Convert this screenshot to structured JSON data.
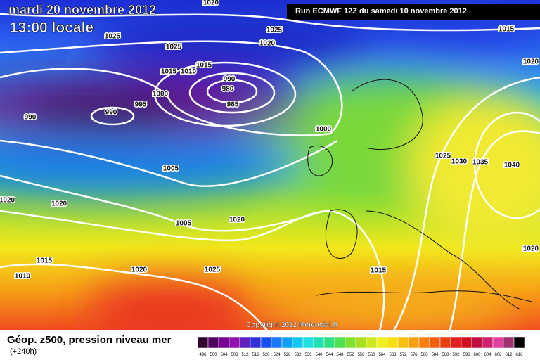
{
  "header": {
    "title": "mardi 20 novembre 2012",
    "time": "13:00 locale"
  },
  "run_label": "Run ECMWF 12Z du samedi 10 novembre 2012",
  "copyright": "Copyright 2012 Meteociel.fr",
  "footer": {
    "title": "Géop. z500, pression niveau mer",
    "lead": "(+240h)"
  },
  "scale_labels": [
    "496",
    "500",
    "504",
    "508",
    "512",
    "516",
    "520",
    "524",
    "528",
    "532",
    "536",
    "540",
    "544",
    "548",
    "552",
    "556",
    "560",
    "564",
    "568",
    "572",
    "576",
    "580",
    "584",
    "588",
    "592",
    "596",
    "600",
    "604",
    "608",
    "612",
    "616"
  ],
  "isobar_labels": [
    "1020",
    "1025",
    "1025",
    "1020",
    "1015",
    "1025",
    "1015",
    "1015",
    "1010",
    "990",
    "980",
    "1000",
    "995",
    "985",
    "990",
    "990",
    "1000",
    "1020",
    "1025",
    "1030",
    "1035",
    "1040",
    "1005",
    "1020",
    "1020",
    "1005",
    "1020",
    "1020",
    "1015",
    "1010",
    "1020",
    "1025",
    "1015"
  ]
}
